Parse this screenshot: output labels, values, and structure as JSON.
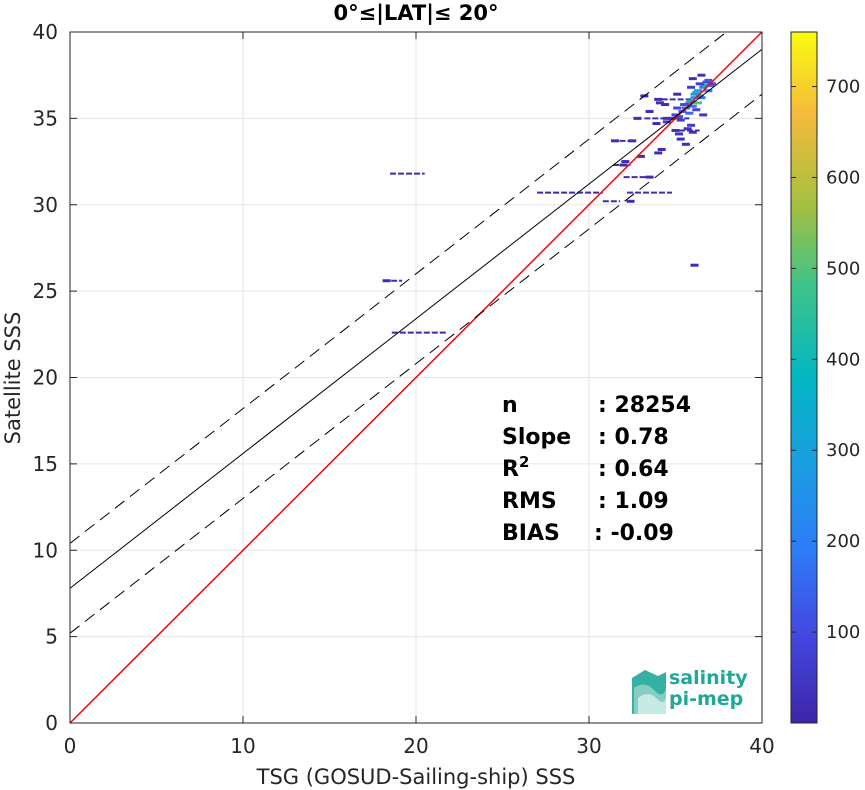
{
  "chart_data": {
    "type": "scatter",
    "title": "0°≤|LAT|≤ 20°",
    "xlabel": "TSG (GOSUD-Sailing-ship) SSS",
    "ylabel": "Satellite SSS",
    "xlim": [
      0,
      40
    ],
    "ylim": [
      0,
      40
    ],
    "xticks": [
      0,
      10,
      20,
      30,
      40
    ],
    "yticks": [
      0,
      5,
      10,
      15,
      20,
      25,
      30,
      35,
      40
    ],
    "grid": true,
    "colorbar": {
      "range": [
        0,
        760
      ],
      "ticks": [
        100,
        200,
        300,
        400,
        500,
        600,
        700
      ],
      "colormap": "parula"
    },
    "lines": [
      {
        "name": "identity",
        "color": "#ff0000",
        "slope": 1.0,
        "intercept": 0.0,
        "style": "solid"
      },
      {
        "name": "regression",
        "color": "#000000",
        "slope": 0.78,
        "intercept": 7.8,
        "style": "solid"
      },
      {
        "name": "regression-upper",
        "color": "#000000",
        "slope": 0.78,
        "intercept": 10.4,
        "style": "dashed"
      },
      {
        "name": "regression-lower",
        "color": "#000000",
        "slope": 0.78,
        "intercept": 5.2,
        "style": "dashed"
      }
    ],
    "density_points": [
      [
        36.0,
        37.3,
        30
      ],
      [
        36.5,
        37.5,
        40
      ],
      [
        36.8,
        37.1,
        80
      ],
      [
        37.0,
        36.9,
        150
      ],
      [
        36.6,
        36.8,
        200
      ],
      [
        36.3,
        36.6,
        250
      ],
      [
        36.9,
        36.6,
        220
      ],
      [
        36.4,
        36.3,
        300
      ],
      [
        36.1,
        36.2,
        260
      ],
      [
        35.8,
        35.9,
        220
      ],
      [
        36.0,
        35.7,
        180
      ],
      [
        35.6,
        35.6,
        160
      ],
      [
        35.4,
        35.4,
        140
      ],
      [
        35.8,
        35.3,
        150
      ],
      [
        35.2,
        35.1,
        120
      ],
      [
        35.9,
        36.0,
        350
      ],
      [
        36.2,
        36.5,
        420
      ],
      [
        36.7,
        36.9,
        300
      ],
      [
        36.5,
        36.2,
        180
      ],
      [
        35.5,
        35.8,
        100
      ],
      [
        35.0,
        35.2,
        90
      ],
      [
        34.8,
        35.0,
        80
      ],
      [
        35.3,
        34.9,
        70
      ],
      [
        36.2,
        35.5,
        80
      ],
      [
        35.9,
        34.6,
        60
      ],
      [
        36.6,
        35.2,
        50
      ],
      [
        34.5,
        34.8,
        60
      ],
      [
        35.7,
        34.4,
        40
      ],
      [
        36.3,
        35.9,
        500
      ],
      [
        36.1,
        36.4,
        260
      ],
      [
        36.9,
        37.2,
        120
      ],
      [
        37.1,
        37.0,
        90
      ],
      [
        33.2,
        36.3,
        20
      ],
      [
        34.0,
        36.1,
        20
      ],
      [
        35.1,
        36.4,
        20
      ],
      [
        34.4,
        35.8,
        20
      ],
      [
        33.5,
        35.4,
        20
      ],
      [
        34.5,
        35.0,
        30
      ],
      [
        32.8,
        35.0,
        30
      ],
      [
        33.9,
        34.7,
        20
      ],
      [
        36.0,
        34.2,
        20
      ],
      [
        32.5,
        33.7,
        20
      ],
      [
        31.5,
        33.7,
        20
      ],
      [
        35.3,
        33.8,
        20
      ],
      [
        34.0,
        33.0,
        20
      ],
      [
        32.0,
        32.3,
        20
      ],
      [
        33.5,
        31.6,
        20
      ],
      [
        32.4,
        30.2,
        20
      ],
      [
        36.1,
        26.5,
        20
      ],
      [
        18.3,
        25.6,
        20
      ],
      [
        34.1,
        35.9,
        20
      ],
      [
        35.0,
        34.3,
        30
      ],
      [
        35.2,
        34.1,
        40
      ],
      [
        32.1,
        32.5,
        20
      ],
      [
        33.0,
        32.8,
        20
      ],
      [
        35.6,
        33.5,
        20
      ],
      [
        34.2,
        33.2,
        20
      ],
      [
        35.9,
        36.8,
        60
      ],
      [
        36.4,
        37.0,
        70
      ],
      [
        35.1,
        35.6,
        90
      ]
    ],
    "horizontal_segments": [
      {
        "x0": 18.5,
        "x1": 20.5,
        "y": 31.8,
        "density": 10
      },
      {
        "x0": 18.6,
        "x1": 21.8,
        "y": 22.6,
        "density": 10
      },
      {
        "x0": 18.1,
        "x1": 19.2,
        "y": 25.6,
        "density": 20
      },
      {
        "x0": 27.0,
        "x1": 30.8,
        "y": 30.7,
        "density": 10
      },
      {
        "x0": 32.2,
        "x1": 34.8,
        "y": 30.7,
        "density": 20
      },
      {
        "x0": 30.8,
        "x1": 31.8,
        "y": 30.2,
        "density": 20
      },
      {
        "x0": 31.3,
        "x1": 32.3,
        "y": 33.7,
        "density": 20
      },
      {
        "x0": 32.0,
        "x1": 33.5,
        "y": 31.6,
        "density": 20
      },
      {
        "x0": 33.2,
        "x1": 35.8,
        "y": 35.0,
        "density": 30
      },
      {
        "x0": 34.2,
        "x1": 36.0,
        "y": 36.1,
        "density": 20
      },
      {
        "x0": 31.4,
        "x1": 32.4,
        "y": 32.3,
        "density": 20
      },
      {
        "x0": 35.2,
        "x1": 36.4,
        "y": 34.3,
        "density": 20
      }
    ],
    "stats": [
      {
        "label": "n",
        "value": ": 28254"
      },
      {
        "label": "Slope",
        "value": ": 0.78"
      },
      {
        "label": "R",
        "sup": "2",
        "value": ": 0.64"
      },
      {
        "label": "RMS",
        "value": ": 1.09"
      },
      {
        "label": "BIAS",
        "value": ": -0.09"
      }
    ]
  },
  "logo": {
    "line1": "salinity",
    "line2": "pi-mep",
    "color": "#1fa89a"
  }
}
